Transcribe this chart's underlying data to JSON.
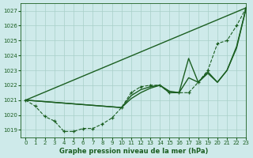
{
  "background_color": "#ceeaea",
  "grid_color": "#a8cfc8",
  "line_color": "#1a5e20",
  "title": "Graphe pression niveau de la mer (hPa)",
  "xlim": [
    -0.5,
    23
  ],
  "ylim": [
    1018.5,
    1027.5
  ],
  "yticks": [
    1019,
    1020,
    1021,
    1022,
    1023,
    1024,
    1025,
    1026,
    1027
  ],
  "xticks": [
    0,
    1,
    2,
    3,
    4,
    5,
    6,
    7,
    8,
    9,
    10,
    11,
    12,
    13,
    14,
    15,
    16,
    17,
    18,
    19,
    20,
    21,
    22,
    23
  ],
  "series_dot_x": [
    0,
    1,
    2,
    3,
    4,
    5,
    6,
    7,
    8,
    9,
    10,
    11,
    12,
    13,
    14,
    15,
    16,
    17,
    18,
    19,
    20,
    21,
    22,
    23
  ],
  "series_dot_y": [
    1021.0,
    1020.6,
    1019.9,
    1019.6,
    1018.9,
    1018.9,
    1019.1,
    1019.1,
    1019.4,
    1019.8,
    1020.5,
    1021.5,
    1021.9,
    1022.0,
    1022.0,
    1021.5,
    1021.5,
    1021.5,
    1022.2,
    1023.0,
    1024.8,
    1025.0,
    1026.0,
    1027.2
  ],
  "line1_x": [
    0,
    23
  ],
  "line1_y": [
    1021.0,
    1027.2
  ],
  "line2_x": [
    0,
    10,
    11,
    12,
    13,
    14,
    15,
    16,
    17,
    18,
    19,
    20,
    21,
    22,
    23
  ],
  "line2_y": [
    1021.0,
    1020.5,
    1021.3,
    1021.7,
    1021.9,
    1022.0,
    1021.6,
    1021.5,
    1023.8,
    1022.2,
    1022.9,
    1022.2,
    1023.0,
    1024.6,
    1027.2
  ],
  "line3_x": [
    0,
    10,
    11,
    12,
    13,
    14,
    15,
    16,
    17,
    18,
    19,
    20,
    21,
    22,
    23
  ],
  "line3_y": [
    1021.0,
    1020.5,
    1021.1,
    1021.5,
    1021.8,
    1022.0,
    1021.5,
    1021.5,
    1022.5,
    1022.2,
    1022.8,
    1022.2,
    1023.0,
    1024.5,
    1027.2
  ]
}
